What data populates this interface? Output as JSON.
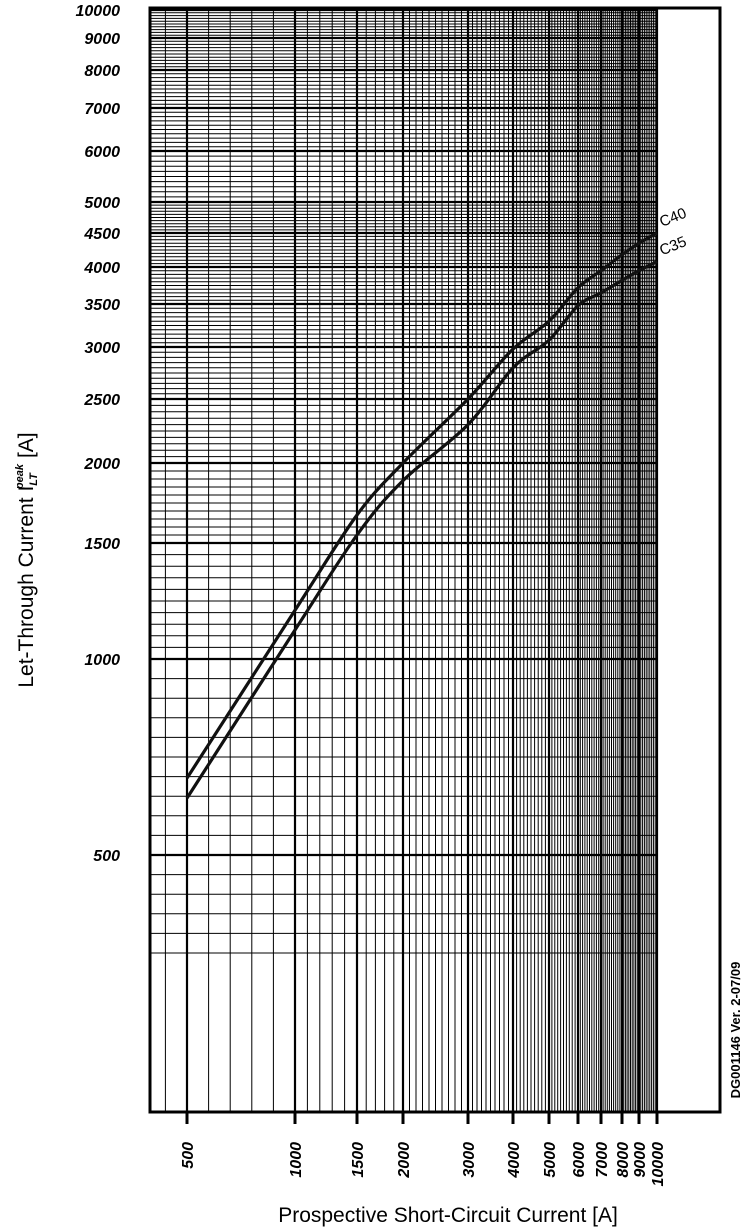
{
  "chart_data": {
    "type": "line",
    "title": "",
    "xlabel": "Prospective Short-Circuit Current [A]",
    "ylabel_main": "Let-Through Current I",
    "ylabel_sup": "peak",
    "ylabel_sub": "LT",
    "ylabel_unit": "[A]",
    "x_ticks": [
      500,
      1000,
      1500,
      2000,
      3000,
      4000,
      5000,
      6000,
      7000,
      8000,
      9000,
      10000
    ],
    "y_ticks": [
      500,
      1000,
      1500,
      2000,
      2500,
      3000,
      3500,
      4000,
      4500,
      5000,
      6000,
      7000,
      8000,
      9000,
      10000
    ],
    "xlim": [
      500,
      10000
    ],
    "ylim": [
      300,
      10000
    ],
    "grid": true,
    "series": [
      {
        "name": "C40",
        "x": [
          500,
          1000,
          1500,
          2000,
          3000,
          4000,
          5000,
          6000,
          7000,
          8000,
          9000,
          10000
        ],
        "y": [
          696,
          1210,
          1675,
          2000,
          2500,
          2980,
          3300,
          3720,
          3950,
          4180,
          4350,
          4500
        ]
      },
      {
        "name": "C35",
        "x": [
          500,
          1000,
          1500,
          2000,
          3000,
          4000,
          5000,
          6000,
          7000,
          8000,
          9000,
          10000
        ],
        "y": [
          645,
          1125,
          1550,
          1890,
          2300,
          2800,
          3080,
          3480,
          3650,
          3820,
          3950,
          4080
        ]
      }
    ]
  },
  "footer_code": "DG001146 Ver. 2-07/09"
}
